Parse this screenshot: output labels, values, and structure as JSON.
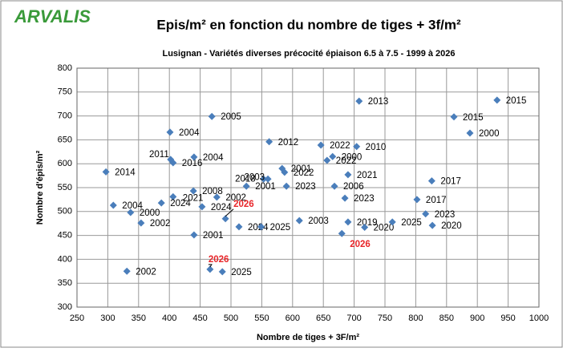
{
  "logo": "ARVALIS",
  "chart_data": {
    "type": "scatter",
    "title": "Epis/m² en fonction du nombre de tiges + 3f/m²",
    "subtitle": "Lusignan - Variétés diverses précocité épiaison 6.5 à 7.5 - 1999 à 2026",
    "x_label": "Nombre de tiges + 3F/m²",
    "y_label": "Nombre d'épis/m²",
    "color": "#4a7ebb",
    "highlight_color": "#e8262a",
    "x": [
      297,
      309,
      337,
      354,
      331,
      401,
      402,
      406,
      440,
      406,
      387,
      439,
      453,
      477,
      440,
      469,
      491,
      466,
      486,
      513,
      525,
      549,
      562,
      553,
      560,
      583,
      587,
      590,
      611,
      646,
      665,
      656,
      704,
      708,
      690,
      668,
      685,
      690,
      680,
      717,
      762,
      826,
      802,
      816,
      827,
      862,
      888,
      932
    ],
    "values": [
      583,
      513,
      498,
      476,
      375,
      666,
      609,
      602,
      614,
      531,
      518,
      543,
      510,
      530,
      451,
      699,
      485,
      379,
      374,
      468,
      553,
      468,
      646,
      568,
      568,
      590,
      582,
      553,
      481,
      639,
      615,
      607,
      636,
      731,
      577,
      553,
      528,
      478,
      454,
      467,
      478,
      564,
      525,
      495,
      471,
      698,
      664,
      733
    ],
    "point_labels": [
      "2014",
      "2004",
      "2000",
      "2002",
      "2002",
      "2004",
      "2011",
      "2016",
      "2004",
      "2021",
      "2024",
      "2008",
      "2024",
      "2002",
      "2001",
      "2005",
      "2026",
      "2026",
      "2025",
      "2024",
      "2001",
      "2025",
      "2012",
      "2018",
      "2003",
      "2001",
      "2022",
      "2023",
      "2003",
      "2022",
      "2000",
      "2022",
      "2010",
      "2013",
      "2021",
      "2006",
      "2023",
      "2019",
      "2026",
      "2020",
      "2025",
      "2017",
      "2017",
      "2023",
      "2020",
      "2015",
      "2000",
      "2015"
    ],
    "highlighted": [
      16,
      17,
      38
    ],
    "xlim": [
      250,
      1000
    ],
    "xticks": [
      250,
      300,
      350,
      400,
      450,
      500,
      550,
      600,
      650,
      700,
      750,
      800,
      850,
      900,
      950,
      1000
    ],
    "ylim": [
      300,
      800
    ],
    "yticks": [
      300,
      350,
      400,
      450,
      500,
      550,
      600,
      650,
      700,
      750,
      800
    ],
    "grid": true
  }
}
